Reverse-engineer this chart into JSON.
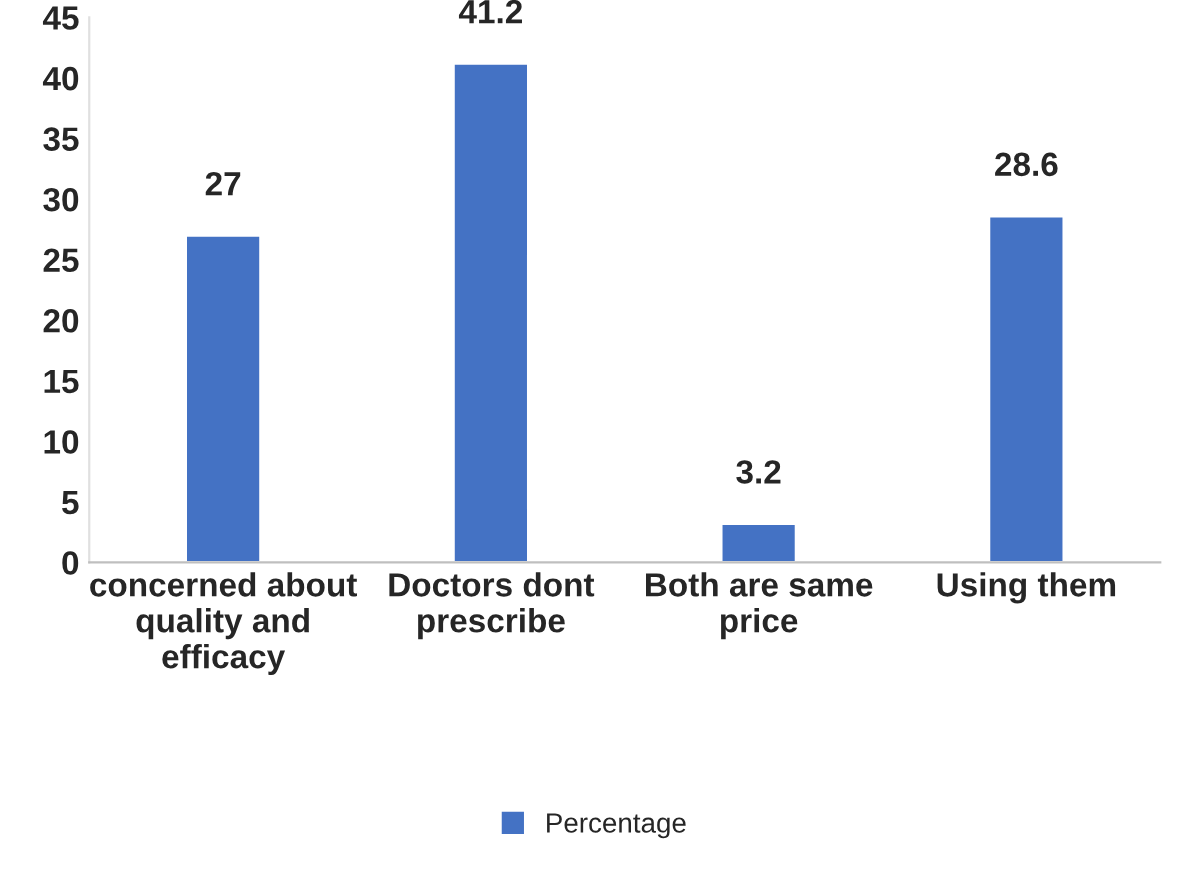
{
  "chart_data": {
    "type": "bar",
    "categories": [
      "concerned about quality and efficacy",
      "Doctors dont prescribe",
      "Both are same price",
      "Using them"
    ],
    "series": [
      {
        "name": "Percentage",
        "color": "#4472c4",
        "values": [
          27,
          41.2,
          3.2,
          28.6
        ]
      }
    ],
    "ylim": [
      0,
      45
    ],
    "yticks": [
      0,
      5,
      10,
      15,
      20,
      25,
      30,
      35,
      40,
      45
    ],
    "data_labels": true,
    "legend": "bottom",
    "grid": false
  }
}
